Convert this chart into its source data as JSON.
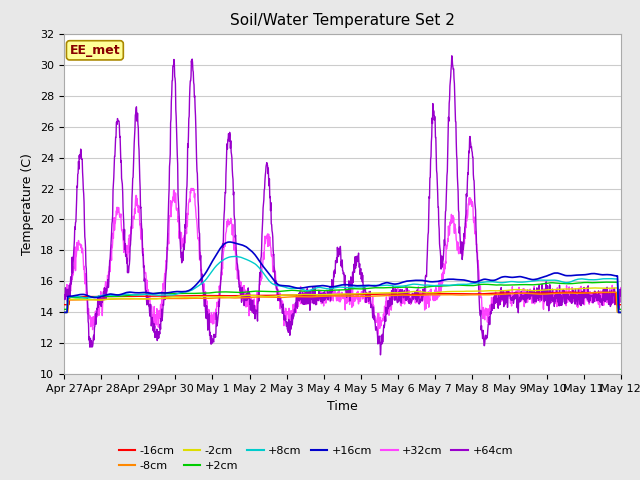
{
  "title": "Soil/Water Temperature Set 2",
  "xlabel": "Time",
  "ylabel": "Temperature (C)",
  "ylim": [
    10,
    32
  ],
  "yticks": [
    10,
    12,
    14,
    16,
    18,
    20,
    22,
    24,
    26,
    28,
    30,
    32
  ],
  "fig_bg": "#e8e8e8",
  "plot_bg": "#ffffff",
  "annotation_text": "EE_met",
  "annotation_bg": "#ffff99",
  "annotation_border": "#aa8800",
  "series_colors": {
    "-16cm": "#ff0000",
    "-8cm": "#ff8800",
    "-2cm": "#dddd00",
    "+2cm": "#00cc00",
    "+8cm": "#00cccc",
    "+16cm": "#0000cc",
    "+32cm": "#ff44ff",
    "+64cm": "#9900cc"
  },
  "xtick_labels": [
    "Apr 27",
    "Apr 28",
    "Apr 29",
    "Apr 30",
    "May 1",
    "May 2",
    "May 3",
    "May 4",
    "May 5",
    "May 6",
    "May 7",
    "May 8",
    "May 9",
    "May 10",
    "May 11",
    "May 12"
  ],
  "legend_row1": [
    "-16cm",
    "-8cm",
    "-2cm",
    "+2cm",
    "+8cm",
    "+16cm"
  ],
  "legend_row2": [
    "+32cm",
    "+64cm"
  ]
}
